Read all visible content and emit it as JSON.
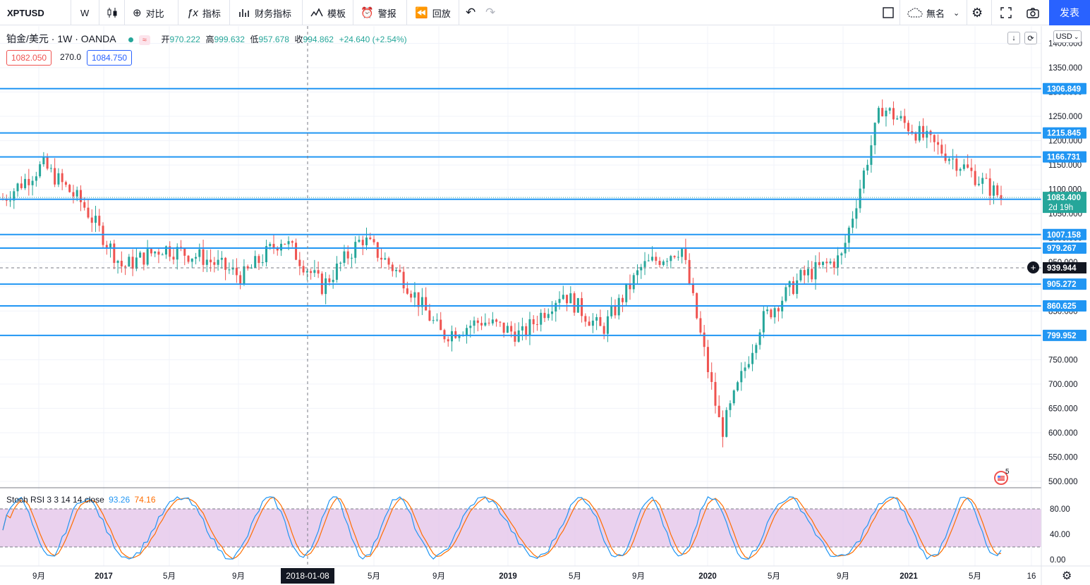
{
  "toolbar": {
    "symbol": "XPTUSD",
    "interval": "W",
    "compare_label": "对比",
    "indicators_label": "指标",
    "financials_label": "财务指标",
    "templates_label": "模板",
    "alert_label": "警报",
    "replay_label": "回放",
    "layout_name": "無名",
    "publish_label": "发表"
  },
  "legend": {
    "title": "铂金/美元 · 1W · OANDA",
    "open_label": "开",
    "open": "970.222",
    "high_label": "高",
    "high": "999.632",
    "low_label": "低",
    "low": "957.678",
    "close_label": "收",
    "close": "994.862",
    "change": "+24.640 (+2.54%)",
    "bid": "1082.050",
    "spread": "270.0",
    "ask": "1084.750"
  },
  "currency": "USD",
  "price_axis": {
    "ticks": [
      "1350.000",
      "1300.000",
      "1250.000",
      "1200.000",
      "1150.000",
      "1100.000",
      "1050.000",
      "1000.000",
      "950.000",
      "900.000",
      "850.000",
      "800.000",
      "750.000",
      "700.000",
      "650.000",
      "600.000",
      "550.000",
      "500.000"
    ],
    "top_partial": "1400.000",
    "countdown": "2d 19h",
    "crosshair_price": "939.944"
  },
  "levels": [
    {
      "value": "1306.849"
    },
    {
      "value": "1215.845"
    },
    {
      "value": "1166.731"
    },
    {
      "value": "1079.508"
    },
    {
      "value": "1007.158"
    },
    {
      "value": "979.267"
    },
    {
      "value": "905.272"
    },
    {
      "value": "860.625"
    },
    {
      "value": "799.952"
    }
  ],
  "last_price": "1083.400",
  "time_axis": {
    "labels": [
      "9月",
      "2017",
      "5月",
      "9月",
      "5月",
      "9月",
      "2019",
      "5月",
      "9月",
      "2020",
      "5月",
      "9月",
      "2021",
      "5月",
      "16"
    ],
    "crosshair_date": "2018-01-08"
  },
  "indicator": {
    "name": "Stoch RSI 3 3 14 14 close",
    "k_value": "93.26",
    "d_value": "74.16",
    "ticks": [
      "80.00",
      "40.00",
      "0.00"
    ],
    "k_color": "#2196f3",
    "d_color": "#ff6d00"
  },
  "events_badge_count": "5",
  "colors": {
    "up": "#26a69a",
    "down": "#ef5350",
    "level_line": "#2196f3",
    "accent": "#2962ff",
    "band": "#e1bee7"
  },
  "chart_data": {
    "type": "candlestick",
    "title": "铂金/美元 · 1W · OANDA",
    "ylim": [
      480,
      1420
    ],
    "x_range": [
      "2016-07",
      "2021-09"
    ],
    "approx_weekly_close": [
      {
        "date": "2016-07",
        "close": 1080
      },
      {
        "date": "2016-08",
        "close": 1150
      },
      {
        "date": "2016-09",
        "close": 1070
      },
      {
        "date": "2016-11",
        "close": 940
      },
      {
        "date": "2017-01",
        "close": 980
      },
      {
        "date": "2017-03",
        "close": 960
      },
      {
        "date": "2017-05",
        "close": 920
      },
      {
        "date": "2017-09",
        "close": 1000
      },
      {
        "date": "2017-12",
        "close": 900
      },
      {
        "date": "2018-01",
        "close": 1000
      },
      {
        "date": "2018-04",
        "close": 920
      },
      {
        "date": "2018-08",
        "close": 800
      },
      {
        "date": "2018-10",
        "close": 830
      },
      {
        "date": "2019-01",
        "close": 800
      },
      {
        "date": "2019-04",
        "close": 890
      },
      {
        "date": "2019-06",
        "close": 810
      },
      {
        "date": "2019-09",
        "close": 940
      },
      {
        "date": "2020-01",
        "close": 980
      },
      {
        "date": "2020-03",
        "close": 600
      },
      {
        "date": "2020-06",
        "close": 830
      },
      {
        "date": "2020-09",
        "close": 920
      },
      {
        "date": "2020-11",
        "close": 960
      },
      {
        "date": "2021-02",
        "close": 1270
      },
      {
        "date": "2021-04",
        "close": 1210
      },
      {
        "date": "2021-06",
        "close": 1150
      },
      {
        "date": "2021-08",
        "close": 1083.4
      }
    ]
  }
}
